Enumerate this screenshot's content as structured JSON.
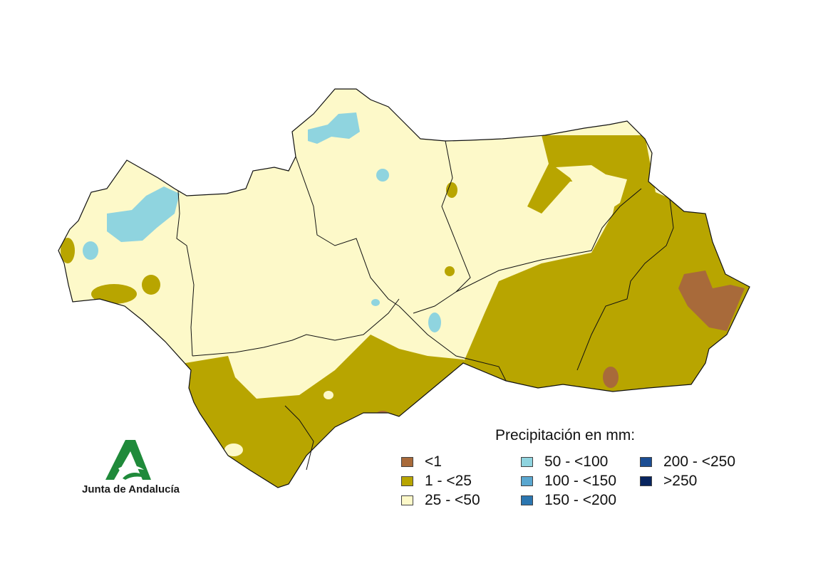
{
  "legend": {
    "title": "Precipitación en mm:",
    "items": [
      {
        "label": "<1",
        "color": "#a86a3a"
      },
      {
        "label": "1 - <25",
        "color": "#b8a500"
      },
      {
        "label": "25 - <50",
        "color": "#fdf9c9"
      },
      {
        "label": "50 - <100",
        "color": "#8fd4df"
      },
      {
        "label": "100 - <150",
        "color": "#5aa7d0"
      },
      {
        "label": "150 - <200",
        "color": "#2b76b0"
      },
      {
        "label": "200 - <250",
        "color": "#1b4d93"
      },
      {
        "label": ">250",
        "color": "#08255f"
      }
    ]
  },
  "logo": {
    "text": "Junta de Andalucía",
    "icon": "junta-de-andalucia-logo-icon",
    "color": "#1f8a3a"
  },
  "map": {
    "region_colors": {
      "outline": "#111111",
      "base": "#fdf9c9",
      "dry": "#b8a500",
      "very_dry": "#a86a3a",
      "wet": "#8fd4df"
    }
  }
}
